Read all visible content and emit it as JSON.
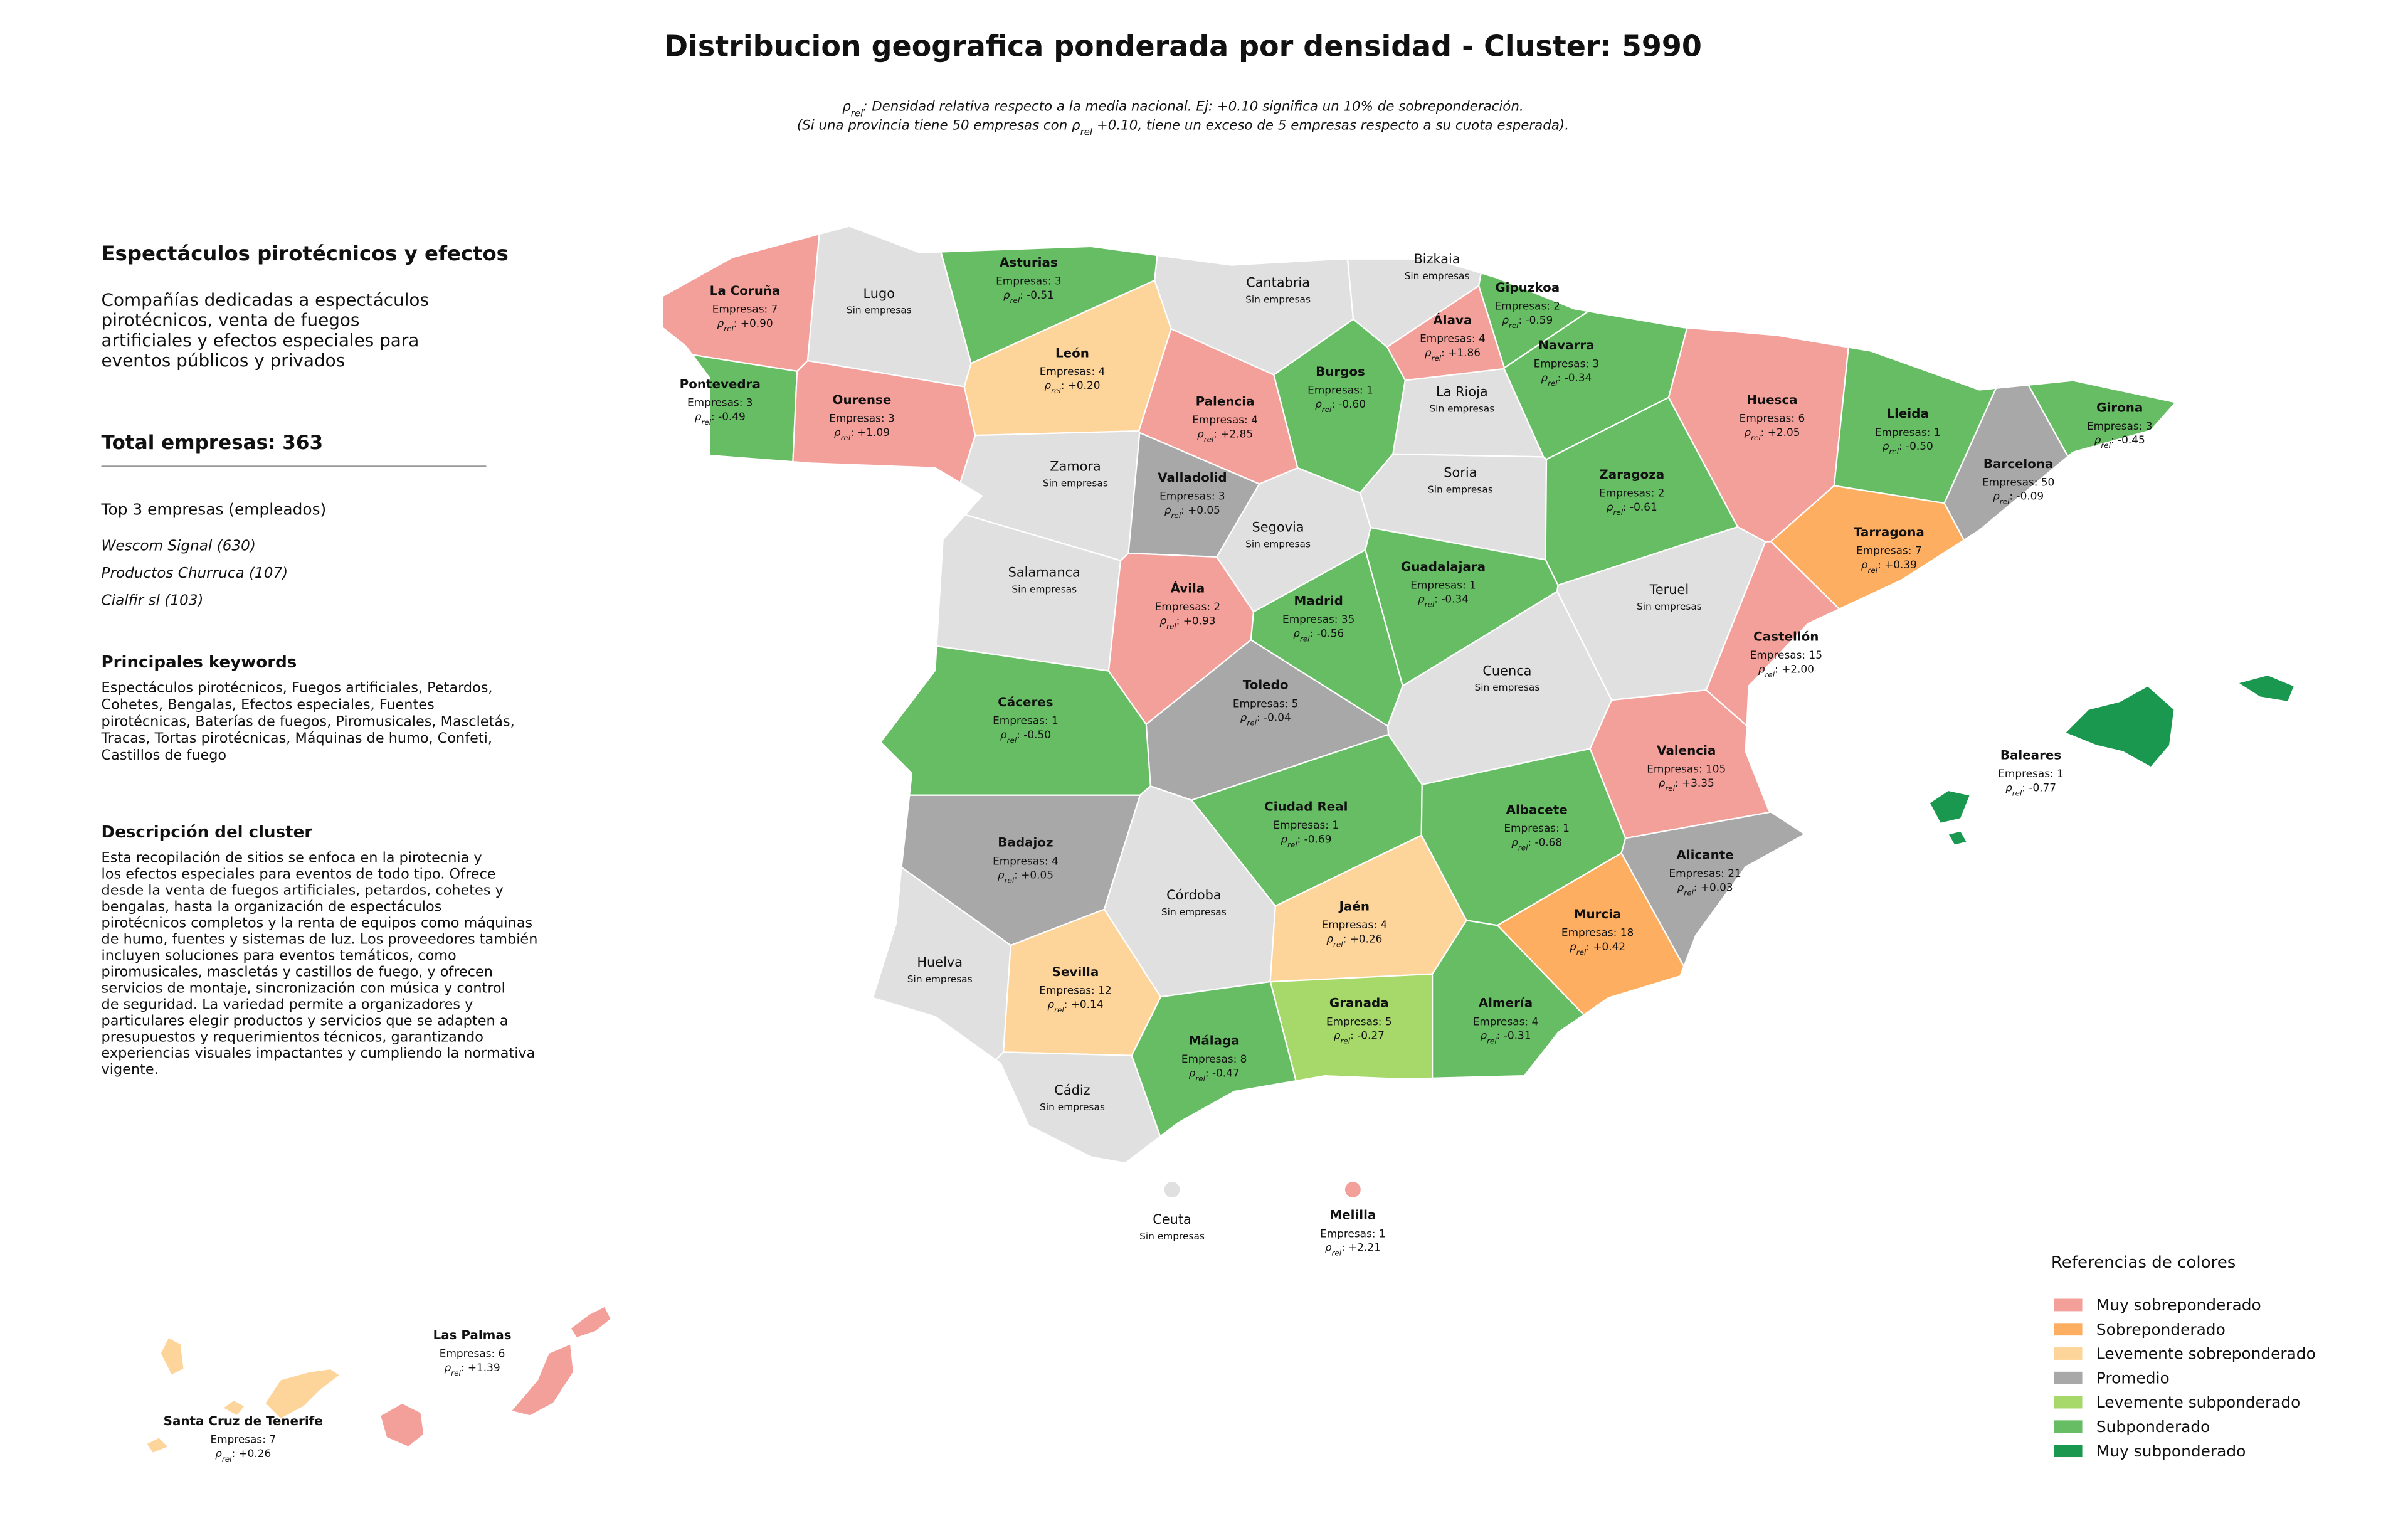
{
  "title": "Distribucion geografica ponderada por densidad - Cluster: 5990",
  "subtitle": [
    [
      "ρ",
      "rel",
      ": Densidad relativa respecto a la media nacional. Ej: +0.10 significa un 10% de sobreponderación."
    ],
    [
      "(Si una provincia tiene 50 empresas con ρ",
      "rel",
      " +0.10, tiene un exceso de 5 empresas respecto a su cuota esperada)."
    ]
  ],
  "sidebar": {
    "heading": "Espectáculos pirotécnicos y efectos",
    "summary": [
      "Compañías dedicadas a espectáculos",
      "pirotécnicos, venta de fuegos",
      "artificiales y efectos especiales para",
      "eventos públicos y privados"
    ],
    "total": "Total empresas: 363",
    "top_heading": "Top 3 empresas (empleados)",
    "top": [
      "Wescom Signal (630)",
      "Productos Churruca (107)",
      "Cialfir sl (103)"
    ],
    "keywords_heading": "Principales keywords",
    "keywords": [
      "Espectáculos pirotécnicos, Fuegos artificiales, Petardos,",
      "Cohetes, Bengalas, Efectos especiales, Fuentes",
      "pirotécnicas, Baterías de fuegos, Piromusicales, Mascletás,",
      "Tracas, Tortas pirotécnicas, Máquinas de humo, Confeti,",
      "Castillos de fuego"
    ],
    "description_heading": "Descripción del cluster",
    "description": [
      "Esta recopilación de sitios se enfoca en la pirotecnia y",
      "los efectos especiales para eventos de todo tipo. Ofrece",
      "desde la venta de fuegos artificiales, petardos, cohetes y",
      "bengalas, hasta la organización de espectáculos",
      "pirotécnicos completos y la renta de equipos como máquinas",
      "de humo, fuentes y sistemas de luz. Los proveedores también",
      "incluyen soluciones para eventos temáticos, como",
      "piromusicales, mascletás y castillos de fuego, y ofrecen",
      "servicios de montaje, sincronización con música y control",
      "de seguridad. La variedad permite a organizadores y",
      "particulares elegir productos y servicios que se adapten a",
      "presupuestos y requerimientos técnicos, garantizando",
      "experiencias visuales impactantes y cumpliendo la normativa",
      "vigente."
    ]
  },
  "labels": {
    "rho_symbol": "ρ",
    "rho_sub": "rel",
    "rho_sep": ": "
  },
  "provinces": [
    {
      "name": "La Coruña",
      "companies": "Empresas: 7",
      "rho": "+0.90",
      "color": "#f4a09a"
    },
    {
      "name": "Lugo",
      "note": "Sin empresas",
      "color": "#e0e0e0"
    },
    {
      "name": "Asturias",
      "companies": "Empresas: 3",
      "rho": "-0.51",
      "color": "#66bd63"
    },
    {
      "name": "Cantabria",
      "note": "Sin empresas",
      "color": "#e0e0e0"
    },
    {
      "name": "Bizkaia",
      "note": "Sin empresas",
      "color": "#e0e0e0"
    },
    {
      "name": "Gipuzkoa",
      "companies": "Empresas: 2",
      "rho": "-0.59",
      "color": "#66bd63"
    },
    {
      "name": "Álava",
      "companies": "Empresas: 4",
      "rho": "+1.86",
      "color": "#f4a09a"
    },
    {
      "name": "Navarra",
      "companies": "Empresas: 3",
      "rho": "-0.34",
      "color": "#66bd63"
    },
    {
      "name": "Pontevedra",
      "companies": "Empresas: 3",
      "rho": "-0.49",
      "color": "#66bd63"
    },
    {
      "name": "Ourense",
      "companies": "Empresas: 3",
      "rho": "+1.09",
      "color": "#f4a09a"
    },
    {
      "name": "León",
      "companies": "Empresas: 4",
      "rho": "+0.20",
      "color": "#fdd49a"
    },
    {
      "name": "Palencia",
      "companies": "Empresas: 4",
      "rho": "+2.85",
      "color": "#f4a09a"
    },
    {
      "name": "Burgos",
      "companies": "Empresas: 1",
      "rho": "-0.60",
      "color": "#66bd63"
    },
    {
      "name": "La Rioja",
      "note": "Sin empresas",
      "color": "#e0e0e0"
    },
    {
      "name": "Huesca",
      "companies": "Empresas: 6",
      "rho": "+2.05",
      "color": "#f4a09a"
    },
    {
      "name": "Lleida",
      "companies": "Empresas: 1",
      "rho": "-0.50",
      "color": "#66bd63"
    },
    {
      "name": "Girona",
      "companies": "Empresas: 3",
      "rho": "-0.45",
      "color": "#66bd63"
    },
    {
      "name": "Barcelona",
      "companies": "Empresas: 50",
      "rho": "-0.09",
      "color": "#a8a8a8"
    },
    {
      "name": "Zamora",
      "note": "Sin empresas",
      "color": "#e0e0e0"
    },
    {
      "name": "Valladolid",
      "companies": "Empresas: 3",
      "rho": "+0.05",
      "color": "#a8a8a8"
    },
    {
      "name": "Soria",
      "note": "Sin empresas",
      "color": "#e0e0e0"
    },
    {
      "name": "Zaragoza",
      "companies": "Empresas: 2",
      "rho": "-0.61",
      "color": "#66bd63"
    },
    {
      "name": "Tarragona",
      "companies": "Empresas: 7",
      "rho": "+0.39",
      "color": "#fdae61"
    },
    {
      "name": "Salamanca",
      "note": "Sin empresas",
      "color": "#e0e0e0"
    },
    {
      "name": "Segovia",
      "note": "Sin empresas",
      "color": "#e0e0e0"
    },
    {
      "name": "Ávila",
      "companies": "Empresas: 2",
      "rho": "+0.93",
      "color": "#f4a09a"
    },
    {
      "name": "Madrid",
      "companies": "Empresas: 35",
      "rho": "-0.56",
      "color": "#66bd63"
    },
    {
      "name": "Guadalajara",
      "companies": "Empresas: 1",
      "rho": "-0.34",
      "color": "#66bd63"
    },
    {
      "name": "Teruel",
      "note": "Sin empresas",
      "color": "#e0e0e0"
    },
    {
      "name": "Castellón",
      "companies": "Empresas: 15",
      "rho": "+2.00",
      "color": "#f4a09a"
    },
    {
      "name": "Cuenca",
      "note": "Sin empresas",
      "color": "#e0e0e0"
    },
    {
      "name": "Toledo",
      "companies": "Empresas: 5",
      "rho": "-0.04",
      "color": "#a8a8a8"
    },
    {
      "name": "Cáceres",
      "companies": "Empresas: 1",
      "rho": "-0.50",
      "color": "#66bd63"
    },
    {
      "name": "Valencia",
      "companies": "Empresas: 105",
      "rho": "+3.35",
      "color": "#f4a09a"
    },
    {
      "name": "Ciudad Real",
      "companies": "Empresas: 1",
      "rho": "-0.69",
      "color": "#66bd63"
    },
    {
      "name": "Albacete",
      "companies": "Empresas: 1",
      "rho": "-0.68",
      "color": "#66bd63"
    },
    {
      "name": "Badajoz",
      "companies": "Empresas: 4",
      "rho": "+0.05",
      "color": "#a8a8a8"
    },
    {
      "name": "Alicante",
      "companies": "Empresas: 21",
      "rho": "+0.03",
      "color": "#a8a8a8"
    },
    {
      "name": "Córdoba",
      "note": "Sin empresas",
      "color": "#e0e0e0"
    },
    {
      "name": "Jaén",
      "companies": "Empresas: 4",
      "rho": "+0.26",
      "color": "#fdd49a"
    },
    {
      "name": "Murcia",
      "companies": "Empresas: 18",
      "rho": "+0.42",
      "color": "#fdae61"
    },
    {
      "name": "Huelva",
      "note": "Sin empresas",
      "color": "#e0e0e0"
    },
    {
      "name": "Sevilla",
      "companies": "Empresas: 12",
      "rho": "+0.14",
      "color": "#fdd49a"
    },
    {
      "name": "Granada",
      "companies": "Empresas: 5",
      "rho": "-0.27",
      "color": "#a6d96a"
    },
    {
      "name": "Almería",
      "companies": "Empresas: 4",
      "rho": "-0.31",
      "color": "#66bd63"
    },
    {
      "name": "Málaga",
      "companies": "Empresas: 8",
      "rho": "-0.47",
      "color": "#66bd63"
    },
    {
      "name": "Cádiz",
      "note": "Sin empresas",
      "color": "#e0e0e0"
    },
    {
      "name": "Baleares",
      "companies": "Empresas: 1",
      "rho": "-0.77",
      "color": "#1a9850"
    },
    {
      "name": "Ceuta",
      "note": "Sin empresas",
      "color": "#e0e0e0"
    },
    {
      "name": "Melilla",
      "companies": "Empresas: 1",
      "rho": "+2.21",
      "color": "#f4a09a"
    },
    {
      "name": "Las Palmas",
      "companies": "Empresas: 6",
      "rho": "+1.39",
      "color": "#f4a09a"
    },
    {
      "name": "Santa Cruz de Tenerife",
      "companies": "Empresas: 7",
      "rho": "+0.26",
      "color": "#fdd49a"
    }
  ],
  "legend": {
    "title": "Referencias de colores",
    "items": [
      {
        "name": "Muy sobreponderado",
        "color": "#f4a09a"
      },
      {
        "name": "Sobreponderado",
        "color": "#fdae61"
      },
      {
        "name": "Levemente sobreponderado",
        "color": "#fdd49a"
      },
      {
        "name": "Promedio",
        "color": "#a8a8a8"
      },
      {
        "name": "Levemente subponderado",
        "color": "#a6d96a"
      },
      {
        "name": "Subponderado",
        "color": "#66bd63"
      },
      {
        "name": "Muy subponderado",
        "color": "#1a9850"
      }
    ]
  }
}
